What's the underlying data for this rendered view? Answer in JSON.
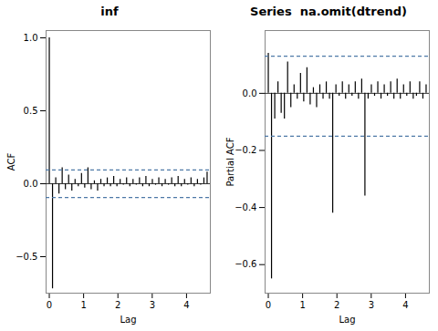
{
  "chart_data": [
    {
      "type": "stem",
      "title": "inf",
      "xlabel": "Lag",
      "ylabel": "ACF",
      "x": [
        0,
        0.093878,
        0.187755,
        0.281633,
        0.37551,
        0.469388,
        0.563265,
        0.657143,
        0.75102,
        0.844898,
        0.938776,
        1.032653,
        1.126531,
        1.220408,
        1.314286,
        1.408163,
        1.502041,
        1.595918,
        1.689796,
        1.783673,
        1.877551,
        1.971429,
        2.065306,
        2.159184,
        2.253061,
        2.346939,
        2.440816,
        2.534694,
        2.628571,
        2.722449,
        2.816327,
        2.910204,
        3.004082,
        3.097959,
        3.191837,
        3.285714,
        3.379592,
        3.473469,
        3.567347,
        3.661224,
        3.755102,
        3.84898,
        3.942857,
        4.036735,
        4.130612,
        4.22449,
        4.318367,
        4.412245,
        4.506122,
        4.6
      ],
      "values": [
        1.0,
        -0.72,
        0.04,
        -0.07,
        0.11,
        -0.04,
        0.06,
        -0.05,
        0.03,
        -0.02,
        0.07,
        -0.03,
        0.11,
        -0.04,
        0.02,
        -0.05,
        0.03,
        -0.02,
        0.04,
        -0.02,
        0.05,
        -0.02,
        0.03,
        -0.01,
        0.04,
        -0.02,
        0.03,
        -0.01,
        0.04,
        -0.02,
        0.05,
        -0.02,
        0.03,
        -0.01,
        0.04,
        -0.02,
        0.03,
        -0.01,
        0.04,
        -0.02,
        0.05,
        -0.02,
        0.03,
        -0.01,
        0.04,
        -0.02,
        0.03,
        -0.01,
        0.04,
        0.08
      ],
      "ci_lines": [
        0.095,
        -0.095
      ],
      "xlim": [
        -0.093878,
        4.693878
      ],
      "xticks": [
        0,
        1,
        2,
        3,
        4
      ],
      "ylim": [
        -0.75,
        1.05
      ],
      "yticks": [
        {
          "value": -0.5,
          "label": "−0.5"
        },
        {
          "value": 0.0,
          "label": "0.0"
        },
        {
          "value": 0.5,
          "label": "0.5"
        },
        {
          "value": 1.0,
          "label": "1.0"
        }
      ],
      "grid": false
    },
    {
      "type": "stem",
      "title": "Series  na.omit(dtrend)",
      "xlabel": "Lag",
      "ylabel": "Partial ACF",
      "x": [
        0,
        0.093878,
        0.187755,
        0.281633,
        0.37551,
        0.469388,
        0.563265,
        0.657143,
        0.75102,
        0.844898,
        0.938776,
        1.032653,
        1.126531,
        1.220408,
        1.314286,
        1.408163,
        1.502041,
        1.595918,
        1.689796,
        1.783673,
        1.877551,
        1.971429,
        2.065306,
        2.159184,
        2.253061,
        2.346939,
        2.440816,
        2.534694,
        2.628571,
        2.722449,
        2.816327,
        2.910204,
        3.004082,
        3.097959,
        3.191837,
        3.285714,
        3.379592,
        3.473469,
        3.567347,
        3.661224,
        3.755102,
        3.84898,
        3.942857,
        4.036735,
        4.130612,
        4.22449,
        4.318367,
        4.412245,
        4.506122,
        4.6
      ],
      "values": [
        0.14,
        -0.65,
        -0.09,
        0.04,
        -0.07,
        -0.09,
        0.11,
        -0.05,
        0.03,
        -0.02,
        0.07,
        -0.03,
        0.09,
        -0.04,
        0.02,
        -0.05,
        0.03,
        -0.02,
        0.04,
        -0.02,
        -0.42,
        0.03,
        -0.01,
        0.04,
        -0.02,
        0.03,
        -0.01,
        0.04,
        -0.02,
        0.05,
        -0.36,
        -0.02,
        0.03,
        -0.01,
        0.04,
        -0.02,
        0.03,
        -0.01,
        0.04,
        -0.02,
        0.05,
        -0.02,
        0.03,
        -0.01,
        0.04,
        -0.02,
        -0.01,
        0.04,
        -0.02,
        0.03
      ],
      "ci_lines": [
        0.13,
        -0.15
      ],
      "xlim": [
        -0.093878,
        4.693878
      ],
      "xticks": [
        0,
        1,
        2,
        3,
        4
      ],
      "ylim": [
        -0.7,
        0.22
      ],
      "yticks": [
        {
          "value": -0.6,
          "label": "−0.6"
        },
        {
          "value": -0.4,
          "label": "−0.4"
        },
        {
          "value": -0.2,
          "label": "−0.2"
        },
        {
          "value": 0.0,
          "label": "0.0"
        }
      ],
      "grid": false
    }
  ]
}
